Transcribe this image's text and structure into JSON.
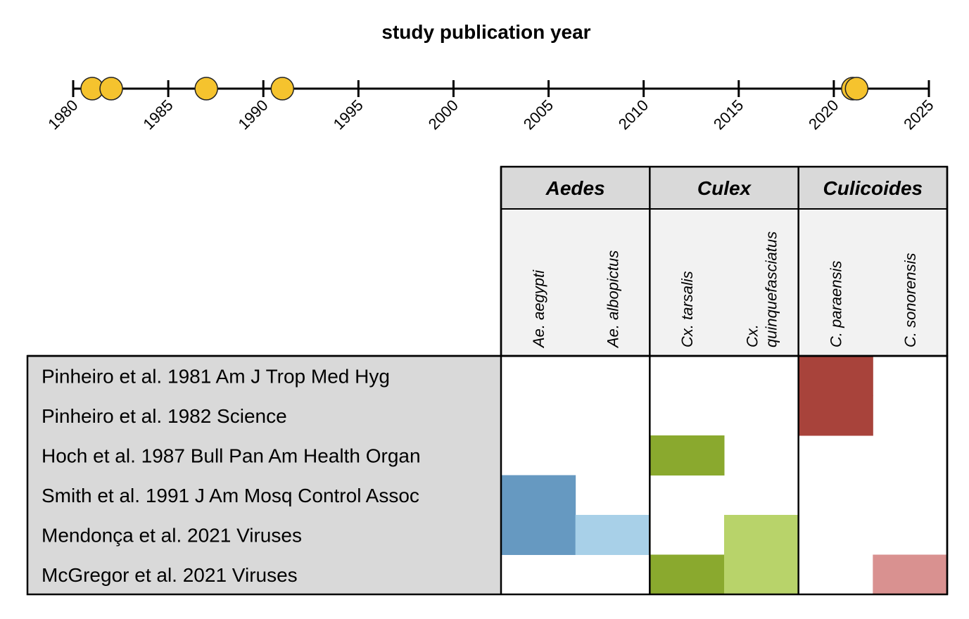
{
  "chart_data": [
    {
      "type": "scatter",
      "title": "study publication year",
      "xlabel": "",
      "ylabel": "",
      "xlim": [
        1980,
        2025
      ],
      "ticks": [
        1980,
        1985,
        1990,
        1995,
        2000,
        2005,
        2010,
        2015,
        2020,
        2025
      ],
      "tick_labels": [
        "1980",
        "1985",
        "1990",
        "1995",
        "2000",
        "2005",
        "2010",
        "2015",
        "2020",
        "2025"
      ],
      "points": [
        1981,
        1982,
        1987,
        1991,
        2021,
        2021.2
      ],
      "marker_color": "#F5C32E",
      "marker_edge_color": "#222222"
    },
    {
      "type": "heatmap",
      "rows": [
        "Pinheiro et al. 1981 Am J Trop Med Hyg",
        "Pinheiro et al. 1982 Science",
        "Hoch et al. 1987 Bull Pan Am Health Organ",
        "Smith et al. 1991 J Am Mosq Control Assoc",
        "Mendonça et al. 2021 Viruses",
        "McGregor et al. 2021 Viruses"
      ],
      "genera": [
        {
          "name": "Aedes",
          "species": [
            "Ae. aegypti",
            "Ae. albopictus"
          ]
        },
        {
          "name": "Culex",
          "species": [
            "Cx. tarsalis",
            "Cx. quinquefasciatus"
          ]
        },
        {
          "name": "Culicoides",
          "species": [
            "C. paraensis",
            "C. sonorensis"
          ]
        }
      ],
      "species_label_lines": [
        [
          "Ae. aegypti"
        ],
        [
          "Ae. albopictus"
        ],
        [
          "Cx. tarsalis"
        ],
        [
          "Cx.",
          "quinquefasciatus"
        ],
        [
          "C. paraensis"
        ],
        [
          "C. sonorensis"
        ]
      ],
      "cells": [
        {
          "row": 0,
          "col": 4,
          "color": "#A8433B"
        },
        {
          "row": 1,
          "col": 4,
          "color": "#A8433B"
        },
        {
          "row": 2,
          "col": 2,
          "color": "#8AA92E"
        },
        {
          "row": 3,
          "col": 0,
          "color": "#6699C1"
        },
        {
          "row": 4,
          "col": 0,
          "color": "#6699C1"
        },
        {
          "row": 4,
          "col": 1,
          "color": "#A8D0E8"
        },
        {
          "row": 4,
          "col": 3,
          "color": "#B8D36A"
        },
        {
          "row": 5,
          "col": 2,
          "color": "#8AA92E"
        },
        {
          "row": 5,
          "col": 3,
          "color": "#B8D36A"
        },
        {
          "row": 5,
          "col": 5,
          "color": "#D99190"
        }
      ],
      "header_fill": "#D9D9D9",
      "species_fill": "#F2F2F2",
      "study_panel_fill": "#D9D9D9"
    }
  ]
}
